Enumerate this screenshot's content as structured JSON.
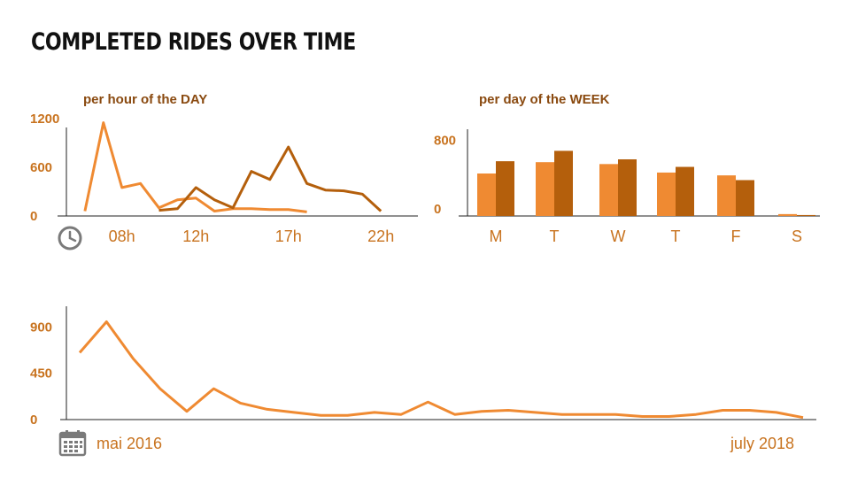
{
  "page": {
    "title": "COMPLETED RIDES OVER TIME"
  },
  "colors": {
    "light_orange": "#ef8a32",
    "dark_orange": "#b45f0c",
    "axis": "#222222",
    "tick_text": "#c8731f",
    "subtitle_text": "#8a4a10",
    "icon_gray": "#7a7a7a"
  },
  "icons": {
    "hourly": "clock-icon",
    "timeline": "calendar-icon"
  },
  "chart_data": [
    {
      "id": "hourly",
      "type": "line",
      "title": "per hour of the DAY",
      "xlim": [
        5,
        24
      ],
      "ylim": [
        0,
        1200
      ],
      "y_ticks": [
        0,
        600,
        1200
      ],
      "x_ticks": [
        {
          "value": 8,
          "label": "08h"
        },
        {
          "value": 12,
          "label": "12h"
        },
        {
          "value": 17,
          "label": "17h"
        },
        {
          "value": 22,
          "label": "22h"
        }
      ],
      "series": [
        {
          "color": "light_orange",
          "x": [
            6,
            7,
            8,
            9,
            10,
            11,
            12,
            13,
            14,
            15,
            16,
            17,
            18
          ],
          "y": [
            60,
            1150,
            350,
            400,
            100,
            200,
            220,
            60,
            90,
            90,
            80,
            80,
            50
          ]
        },
        {
          "color": "dark_orange",
          "x": [
            10,
            11,
            12,
            13,
            14,
            15,
            16,
            17,
            18,
            19,
            20,
            21,
            22
          ],
          "y": [
            70,
            90,
            350,
            200,
            100,
            550,
            450,
            850,
            400,
            320,
            310,
            270,
            60
          ]
        }
      ]
    },
    {
      "id": "weekly",
      "type": "bar",
      "title": "per day of the WEEK",
      "categories": [
        "M",
        "T",
        "W",
        "T",
        "F",
        "S"
      ],
      "ylim": [
        0,
        900
      ],
      "y_ticks": [
        0,
        800
      ],
      "series": [
        {
          "color": "light_orange",
          "values": [
            450,
            570,
            550,
            460,
            430,
            20
          ]
        },
        {
          "color": "dark_orange",
          "values": [
            580,
            690,
            600,
            520,
            380,
            10
          ]
        }
      ]
    },
    {
      "id": "timeline",
      "type": "line",
      "start_label": "mai 2016",
      "end_label": "july 2018",
      "ylim": [
        0,
        1100
      ],
      "y_ticks": [
        0,
        450,
        900
      ],
      "series": [
        {
          "color": "light_orange",
          "values": [
            650,
            950,
            590,
            300,
            80,
            300,
            160,
            100,
            70,
            40,
            40,
            70,
            50,
            170,
            50,
            80,
            90,
            70,
            50,
            50,
            50,
            30,
            30,
            50,
            90,
            90,
            70,
            20
          ]
        }
      ]
    }
  ]
}
